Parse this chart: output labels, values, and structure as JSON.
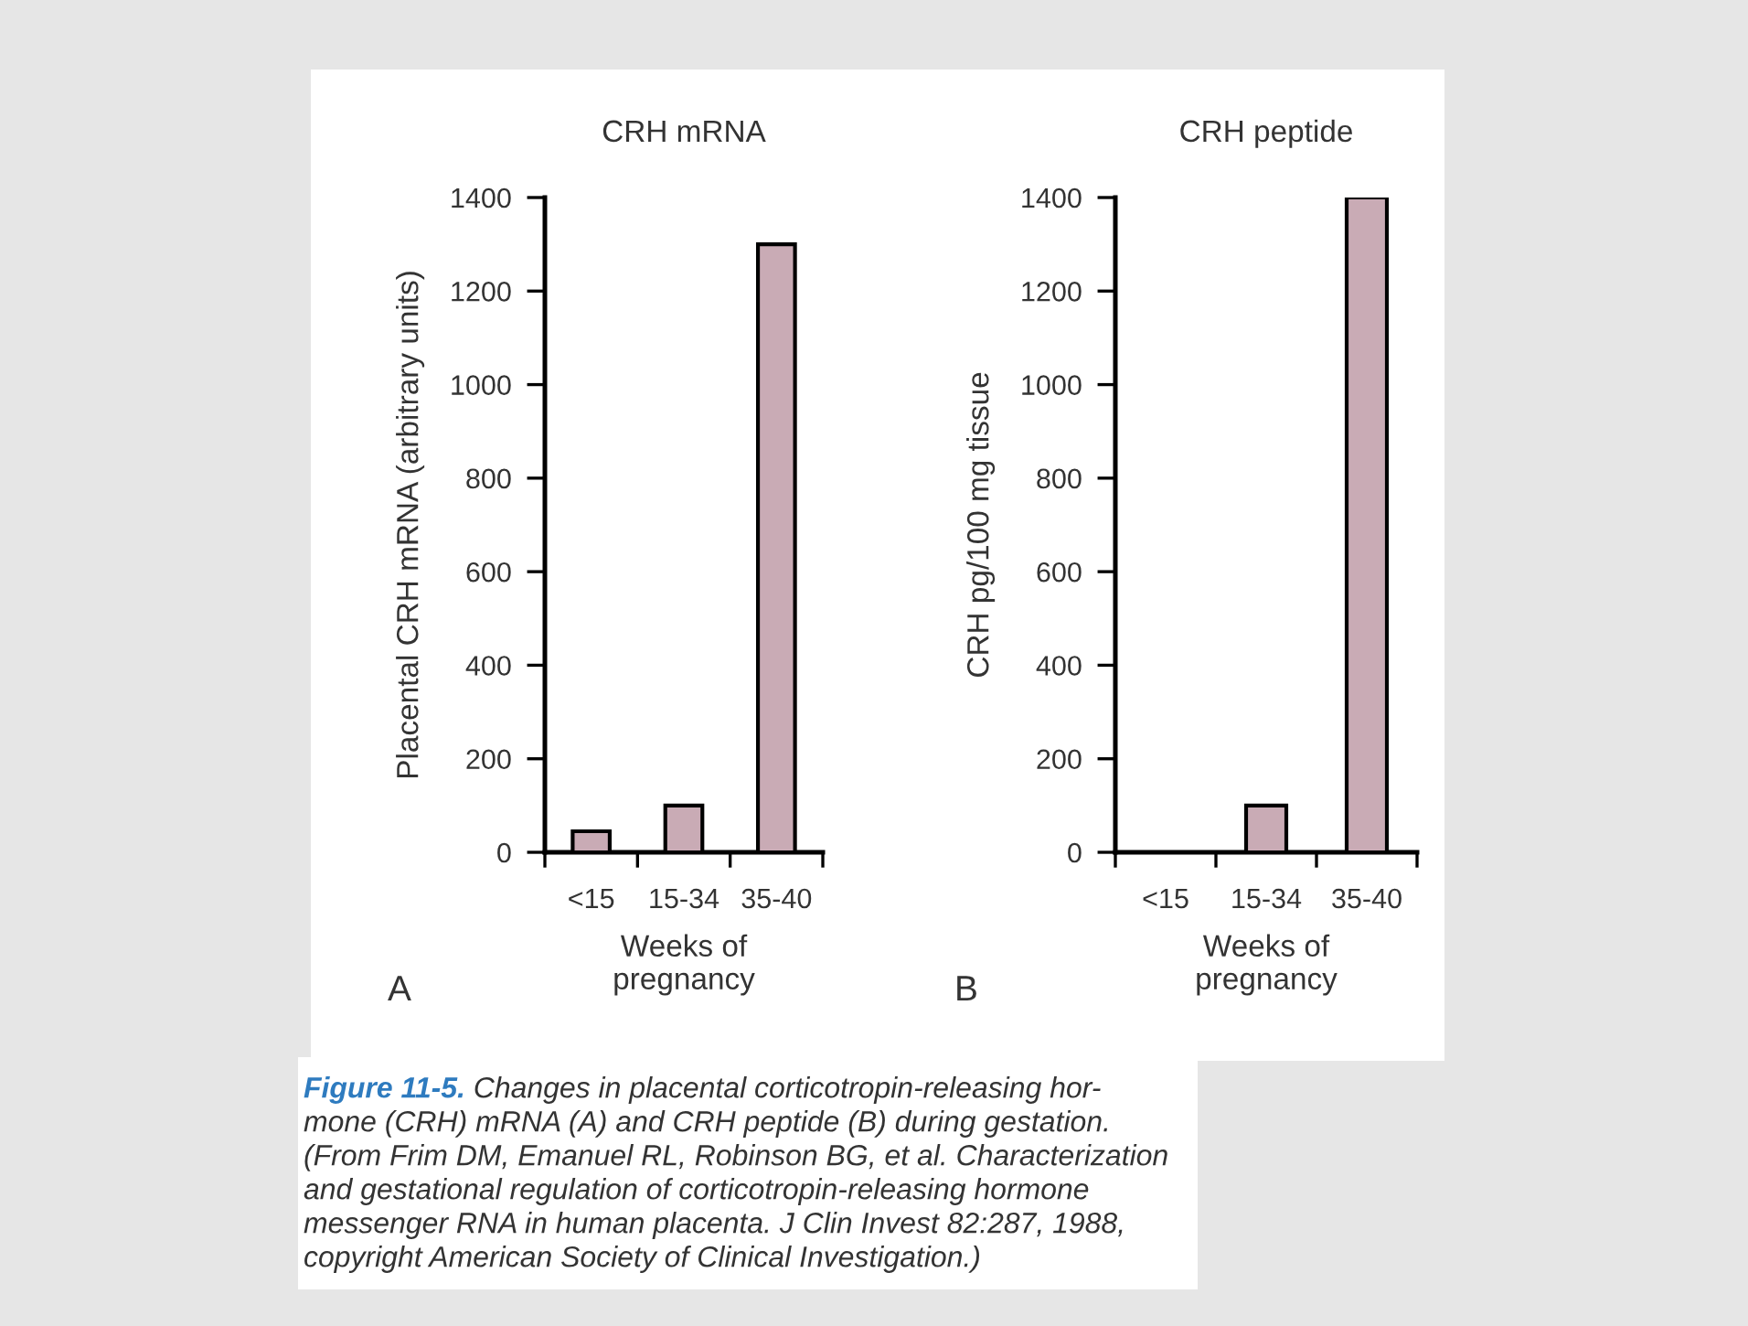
{
  "chart_data": [
    {
      "type": "bar",
      "title": "CRH mRNA",
      "xlabel": "Weeks of\npregnancy",
      "ylabel": "Placental CRH mRNA (arbitrary units)",
      "categories": [
        "<15",
        "15-34",
        "35-40"
      ],
      "values": [
        45,
        100,
        1300
      ],
      "color": "#c9abb5",
      "ylim": [
        0,
        1400
      ],
      "yticks": [
        0,
        200,
        400,
        600,
        800,
        1000,
        1200,
        1400
      ],
      "grid": false,
      "annotations": [
        "A",
        "Figure 11-5.",
        "Changes in placental corticotropin-releasing hor-",
        "mone (CRH) mRNA (A) and CRH peptide (B) during gestation.",
        "(From Frim DM, Emanuel RL, Robinson BG, et al. Characterization",
        "and gestational regulation of corticotropin-releasing hormone",
        "messenger RNA in human placenta. J Clin Invest 82:287, 1988,",
        "copyright American Society of Clinical Investigation.)"
      ]
    },
    {
      "type": "bar",
      "title": "CRH peptide",
      "xlabel": "Weeks of\npregnancy",
      "ylabel": "CRH pg/100 mg tissue",
      "categories": [
        "<15",
        "15-34",
        "35-40"
      ],
      "values": [
        null,
        100,
        1400
      ],
      "color": "#c9abb5",
      "ylim": [
        0,
        1400
      ],
      "yticks": [
        0,
        200,
        400,
        600,
        800,
        1000,
        1200,
        1400
      ],
      "grid": false,
      "annotations": [
        "B"
      ]
    }
  ]
}
